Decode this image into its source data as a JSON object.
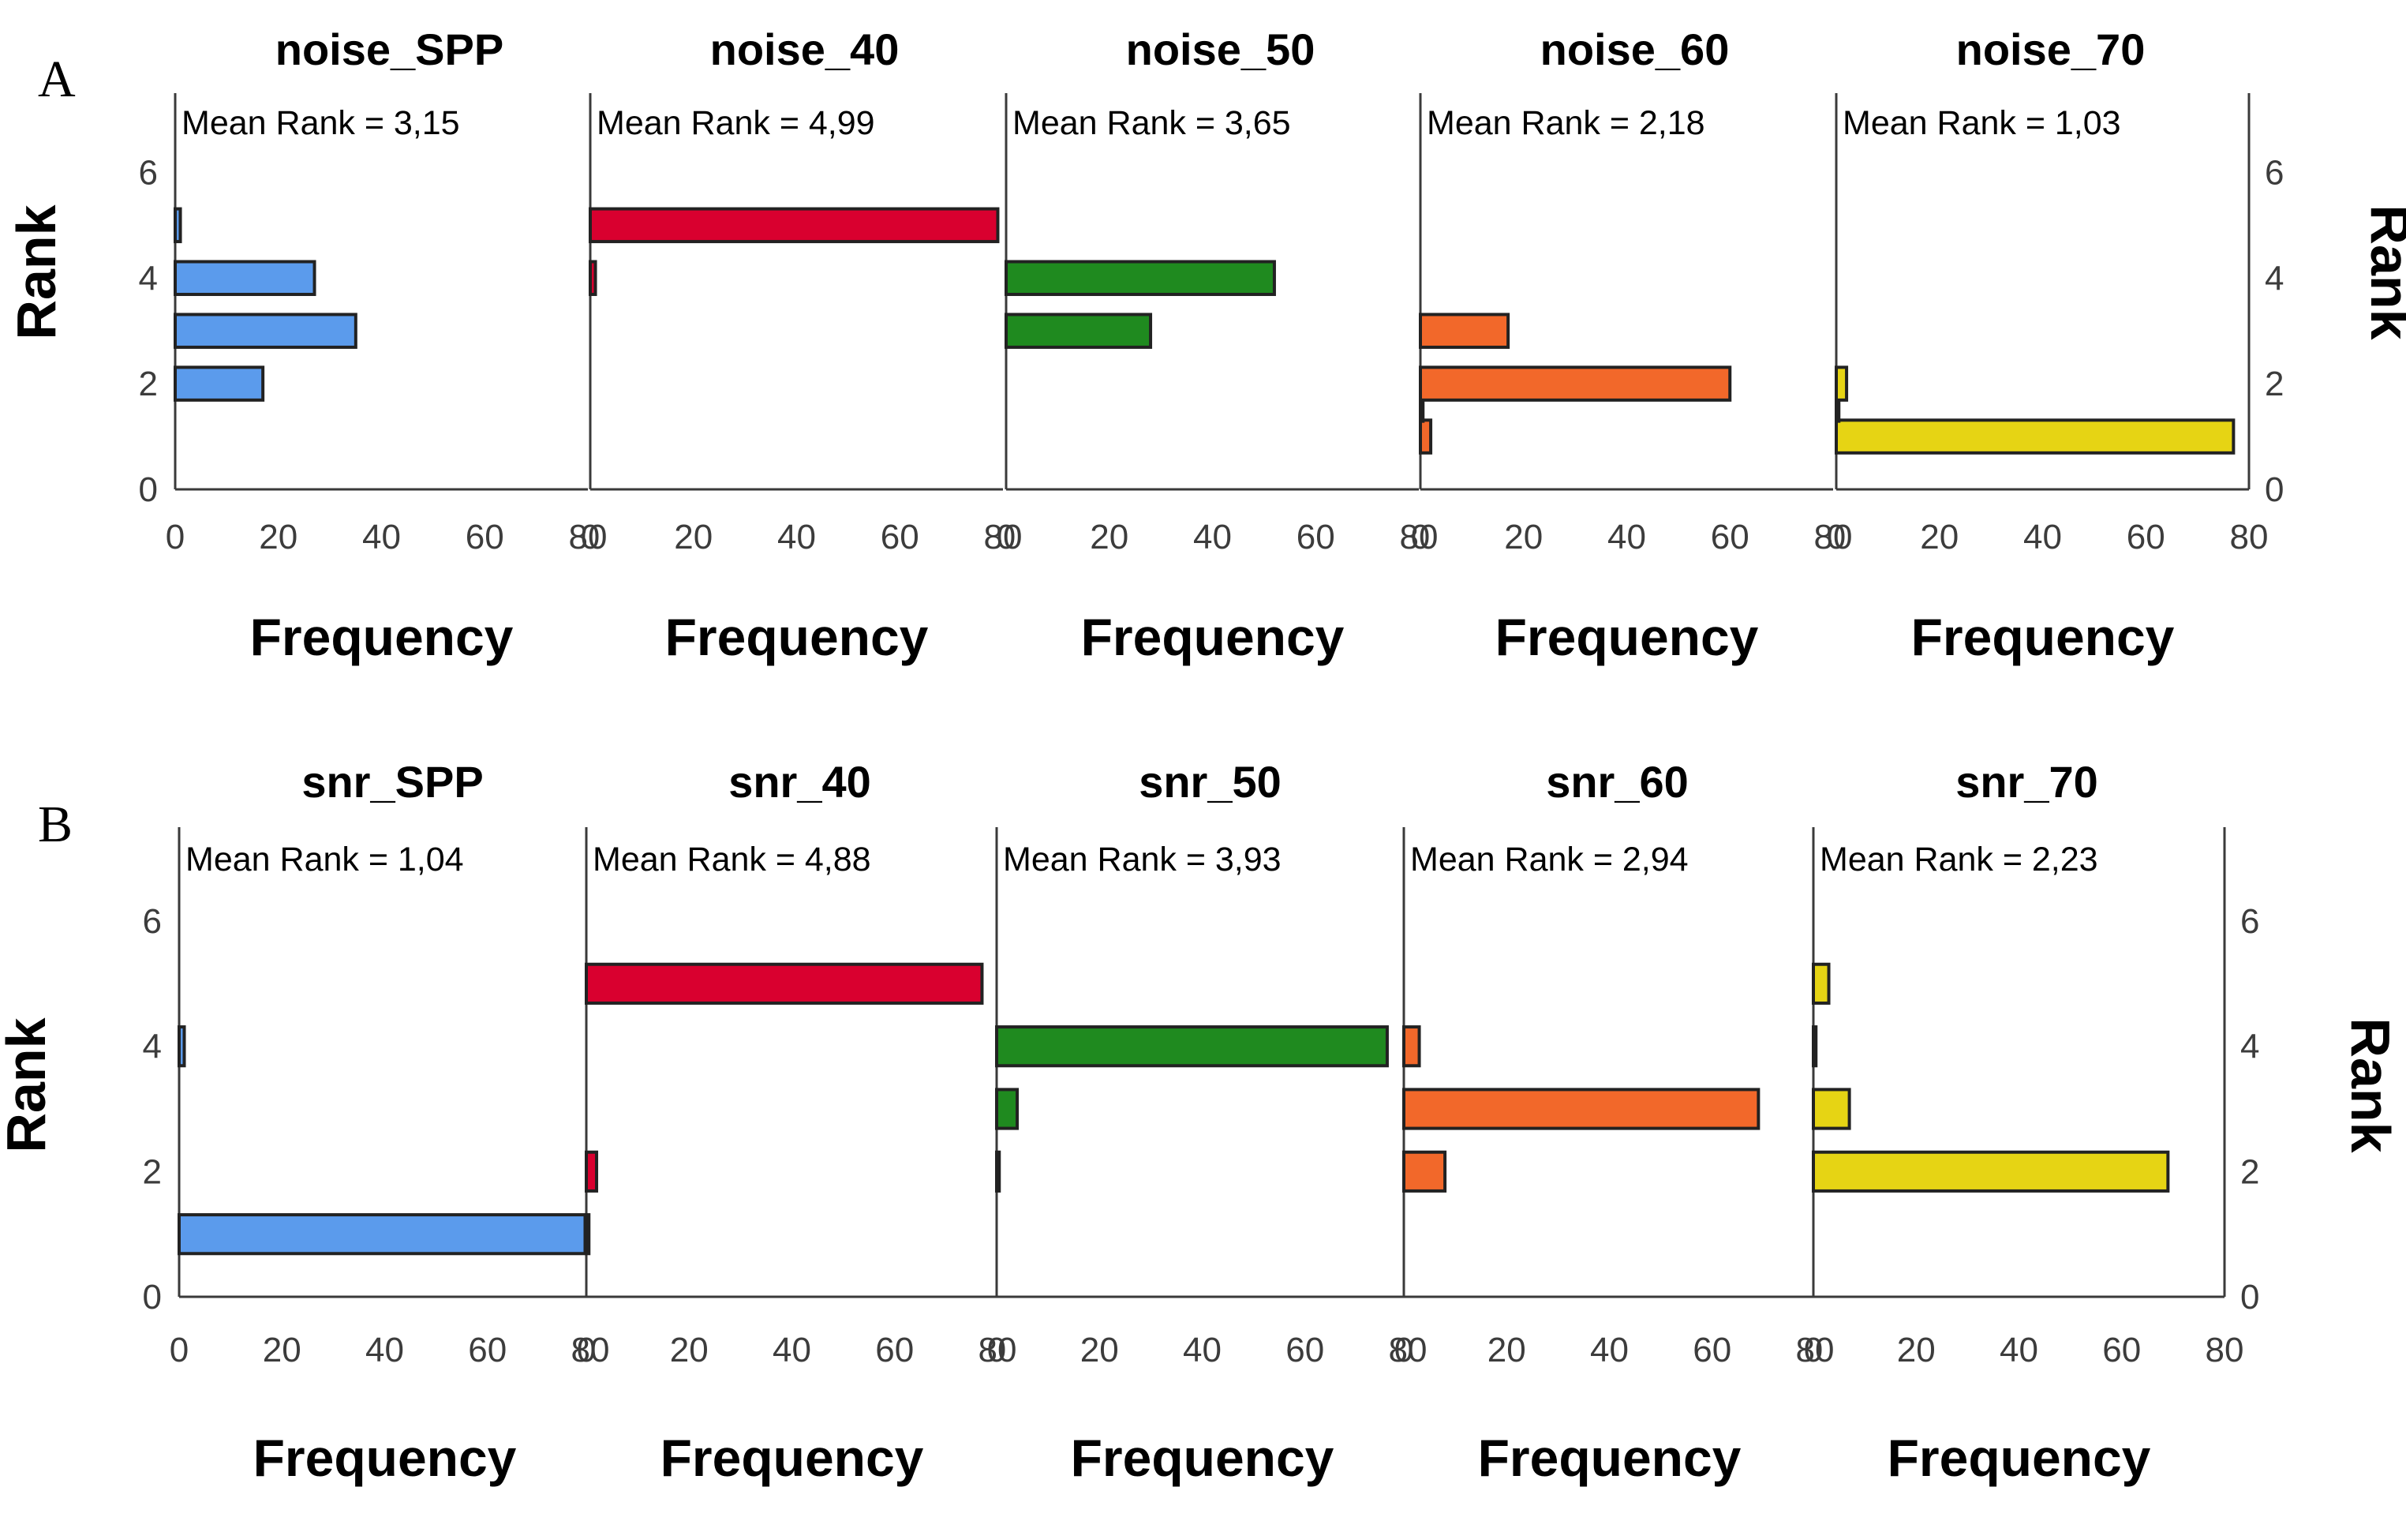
{
  "chart_data": [
    {
      "type": "bar",
      "orientation": "horizontal",
      "panel_label": "A",
      "ylabel": "Rank",
      "xlabel": "Frequency",
      "ylim": [
        0,
        7.5
      ],
      "yticks": [
        "0",
        "2",
        "4",
        "6"
      ],
      "xlim": [
        0,
        80
      ],
      "xticks": [
        "0",
        "20",
        "40",
        "60",
        "80"
      ],
      "series": [
        {
          "name": "noise_SPP",
          "mean_rank_label": "Mean Rank = 3,15",
          "color": "#5b9bec",
          "bars": [
            {
              "rank": 2,
              "freq": 17
            },
            {
              "rank": 3,
              "freq": 35
            },
            {
              "rank": 4,
              "freq": 27
            },
            {
              "rank": 5,
              "freq": 1
            }
          ]
        },
        {
          "name": "noise_40",
          "mean_rank_label": "Mean Rank = 4,99",
          "color": "#d9002f",
          "bars": [
            {
              "rank": 4,
              "freq": 1
            },
            {
              "rank": 5,
              "freq": 79
            }
          ]
        },
        {
          "name": "noise_50",
          "mean_rank_label": "Mean Rank = 3,65",
          "color": "#1f8a1f",
          "bars": [
            {
              "rank": 3,
              "freq": 28
            },
            {
              "rank": 4,
              "freq": 52
            }
          ]
        },
        {
          "name": "noise_60",
          "mean_rank_label": "Mean Rank = 2,18",
          "color": "#f2682a",
          "bars": [
            {
              "rank": 1,
              "freq": 2
            },
            {
              "rank": 1.6,
              "freq": 0.5
            },
            {
              "rank": 2,
              "freq": 60
            },
            {
              "rank": 3,
              "freq": 17
            }
          ]
        },
        {
          "name": "noise_70",
          "mean_rank_label": "Mean Rank = 1,03",
          "color": "#e6d414",
          "bars": [
            {
              "rank": 1,
              "freq": 77
            },
            {
              "rank": 1.6,
              "freq": 0.5
            },
            {
              "rank": 2,
              "freq": 2
            }
          ]
        }
      ]
    },
    {
      "type": "bar",
      "orientation": "horizontal",
      "panel_label": "B",
      "ylabel": "Rank",
      "xlabel": "Frequency",
      "ylim": [
        0,
        7.5
      ],
      "yticks": [
        "0",
        "2",
        "4",
        "6"
      ],
      "xlim": [
        0,
        80
      ],
      "xticks": [
        "0",
        "20",
        "40",
        "60",
        "80"
      ],
      "series": [
        {
          "name": "snr_SPP",
          "mean_rank_label": "Mean Rank = 1,04",
          "color": "#5b9bec",
          "bars": [
            {
              "rank": 1,
              "freq": 79
            },
            {
              "rank": 4,
              "freq": 1
            }
          ]
        },
        {
          "name": "snr_40",
          "mean_rank_label": "Mean Rank = 4,88",
          "color": "#d9002f",
          "bars": [
            {
              "rank": 1,
              "freq": 0.5
            },
            {
              "rank": 2,
              "freq": 2
            },
            {
              "rank": 5,
              "freq": 77
            }
          ]
        },
        {
          "name": "snr_50",
          "mean_rank_label": "Mean Rank = 3,93",
          "color": "#1f8a1f",
          "bars": [
            {
              "rank": 2,
              "freq": 0.5
            },
            {
              "rank": 3,
              "freq": 4
            },
            {
              "rank": 4,
              "freq": 76
            }
          ]
        },
        {
          "name": "snr_60",
          "mean_rank_label": "Mean Rank = 2,94",
          "color": "#f2682a",
          "bars": [
            {
              "rank": 2,
              "freq": 8
            },
            {
              "rank": 3,
              "freq": 69
            },
            {
              "rank": 4,
              "freq": 3
            }
          ]
        },
        {
          "name": "snr_70",
          "mean_rank_label": "Mean Rank = 2,23",
          "color": "#e6d414",
          "bars": [
            {
              "rank": 2,
              "freq": 69
            },
            {
              "rank": 3,
              "freq": 7
            },
            {
              "rank": 4,
              "freq": 0.5
            },
            {
              "rank": 5,
              "freq": 3
            }
          ]
        }
      ]
    }
  ]
}
